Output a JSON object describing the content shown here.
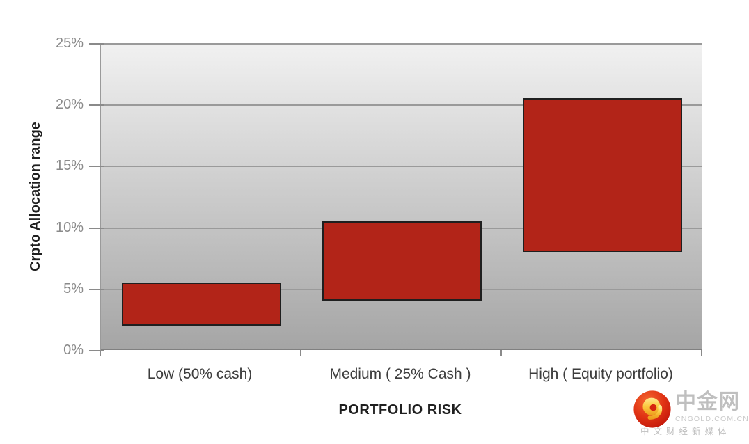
{
  "chart_data": {
    "type": "bar",
    "subtype": "floating_range_bars",
    "title": "",
    "xlabel": "PORTFOLIO RISK",
    "ylabel": "Crpto Allocation range",
    "categories": [
      "Low (50% cash)",
      "Medium ( 25% Cash )",
      "High ( Equity portfolio)"
    ],
    "bars": [
      {
        "category": "Low (50% cash)",
        "low_pct": 2,
        "high_pct": 5.5
      },
      {
        "category": "Medium ( 25% Cash )",
        "low_pct": 4,
        "high_pct": 10.5
      },
      {
        "category": "High ( Equity portfolio)",
        "low_pct": 8,
        "high_pct": 20.5
      }
    ],
    "ylim": [
      0,
      25
    ],
    "y_tick_step": 5,
    "y_tick_labels": [
      "0%",
      "5%",
      "10%",
      "15%",
      "20%",
      "25%"
    ],
    "grid": true,
    "legend": "none",
    "colors": {
      "bar_fill": "#B22418",
      "bar_border": "#1F1F1F",
      "plot_bg_top": "#F1F1F1",
      "plot_bg_bottom": "#A5A5A5",
      "gridline": "#9A9A9A",
      "axis_line": "#808080",
      "tick_label": "#8A8A8A",
      "category_label": "#3D3D3D",
      "axis_title": "#1F1F1F"
    }
  },
  "watermark": {
    "brand_cn": "中金网",
    "brand_url": "CNGOLD.COM.CN",
    "tagline": "中文财经新媒体",
    "logo": "cngold-gold-cloud-on-red-circle",
    "colors": {
      "text": "#BFBFBF",
      "text_light": "#C9C9C9",
      "logo_red": "#D6250F",
      "logo_gold": "#F7B331"
    }
  }
}
